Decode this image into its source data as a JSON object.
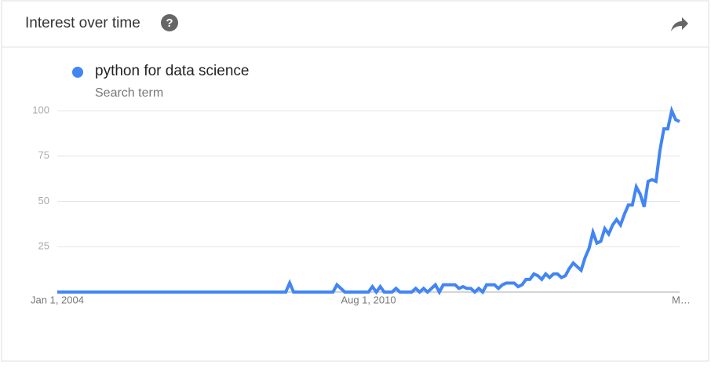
{
  "header": {
    "title": "Interest over time",
    "help_icon": "?"
  },
  "chart_data": {
    "type": "line",
    "x": [
      "2004-01",
      "2004-02",
      "2004-03",
      "2004-04",
      "2004-05",
      "2004-06",
      "2004-07",
      "2004-08",
      "2004-09",
      "2004-10",
      "2004-11",
      "2004-12",
      "2005-01",
      "2005-02",
      "2005-03",
      "2005-04",
      "2005-05",
      "2005-06",
      "2005-07",
      "2005-08",
      "2005-09",
      "2005-10",
      "2005-11",
      "2005-12",
      "2006-01",
      "2006-02",
      "2006-03",
      "2006-04",
      "2006-05",
      "2006-06",
      "2006-07",
      "2006-08",
      "2006-09",
      "2006-10",
      "2006-11",
      "2006-12",
      "2007-01",
      "2007-02",
      "2007-03",
      "2007-04",
      "2007-05",
      "2007-06",
      "2007-07",
      "2007-08",
      "2007-09",
      "2007-10",
      "2007-11",
      "2007-12",
      "2008-01",
      "2008-02",
      "2008-03",
      "2008-04",
      "2008-05",
      "2008-06",
      "2008-07",
      "2008-08",
      "2008-09",
      "2008-10",
      "2008-11",
      "2008-12",
      "2009-01",
      "2009-02",
      "2009-03",
      "2009-04",
      "2009-05",
      "2009-06",
      "2009-07",
      "2009-08",
      "2009-09",
      "2009-10",
      "2009-11",
      "2009-12",
      "2010-01",
      "2010-02",
      "2010-03",
      "2010-04",
      "2010-05",
      "2010-06",
      "2010-07",
      "2010-08",
      "2010-09",
      "2010-10",
      "2010-11",
      "2010-12",
      "2011-01",
      "2011-02",
      "2011-03",
      "2011-04",
      "2011-05",
      "2011-06",
      "2011-07",
      "2011-08",
      "2011-09",
      "2011-10",
      "2011-11",
      "2011-12",
      "2012-01",
      "2012-02",
      "2012-03",
      "2012-04",
      "2012-05",
      "2012-06",
      "2012-07",
      "2012-08",
      "2012-09",
      "2012-10",
      "2012-11",
      "2012-12",
      "2013-01",
      "2013-02",
      "2013-03",
      "2013-04",
      "2013-05",
      "2013-06",
      "2013-07",
      "2013-08",
      "2013-09",
      "2013-10",
      "2013-11",
      "2013-12",
      "2014-01",
      "2014-02",
      "2014-03",
      "2014-04",
      "2014-05",
      "2014-06",
      "2014-07",
      "2014-08",
      "2014-09",
      "2014-10",
      "2014-11",
      "2014-12",
      "2015-01",
      "2015-02",
      "2015-03",
      "2015-04",
      "2015-05",
      "2015-06",
      "2015-07",
      "2015-08",
      "2015-09",
      "2015-10",
      "2015-11",
      "2015-12",
      "2016-01",
      "2016-02",
      "2016-03",
      "2016-04",
      "2016-05",
      "2016-06",
      "2016-07",
      "2016-08",
      "2016-09",
      "2016-10",
      "2016-11",
      "2016-12",
      "2017-01",
      "2017-02",
      "2017-03"
    ],
    "series": [
      {
        "name": "python for data science",
        "color": "#4285f4",
        "legend_subtitle": "Search term",
        "values": [
          0,
          0,
          0,
          0,
          0,
          0,
          0,
          0,
          0,
          0,
          0,
          0,
          0,
          0,
          0,
          0,
          0,
          0,
          0,
          0,
          0,
          0,
          0,
          0,
          0,
          0,
          0,
          0,
          0,
          0,
          0,
          0,
          0,
          0,
          0,
          0,
          0,
          0,
          0,
          0,
          0,
          0,
          0,
          0,
          0,
          0,
          0,
          0,
          0,
          0,
          0,
          0,
          0,
          0,
          0,
          0,
          0,
          0,
          0,
          5,
          0,
          0,
          0,
          0,
          0,
          0,
          0,
          0,
          0,
          0,
          0,
          4,
          2,
          0,
          0,
          0,
          0,
          0,
          0,
          0,
          3,
          0,
          3,
          0,
          0,
          0,
          2,
          0,
          0,
          0,
          0,
          2,
          0,
          2,
          0,
          2,
          4,
          0,
          4,
          4,
          4,
          4,
          2,
          3,
          2,
          2,
          0,
          2,
          0,
          4,
          4,
          4,
          2,
          4,
          5,
          5,
          5,
          3,
          4,
          7,
          7,
          10,
          9,
          7,
          10,
          8,
          10,
          10,
          8,
          9,
          13,
          16,
          14,
          12,
          19,
          24,
          33,
          27,
          28,
          35,
          32,
          37,
          40,
          37,
          43,
          48,
          48,
          58,
          54,
          47,
          61,
          62,
          61,
          78,
          90,
          90,
          100,
          95,
          94
        ]
      }
    ],
    "ylim": [
      0,
      100
    ],
    "yticks": [
      25,
      50,
      75,
      100
    ],
    "grid": true,
    "xticks": [
      {
        "value": "2004-01",
        "label": "Jan 1, 2004"
      },
      {
        "value": "2010-08",
        "label": "Aug 1, 2010"
      },
      {
        "value": "2017-03",
        "label": "M…"
      }
    ]
  }
}
